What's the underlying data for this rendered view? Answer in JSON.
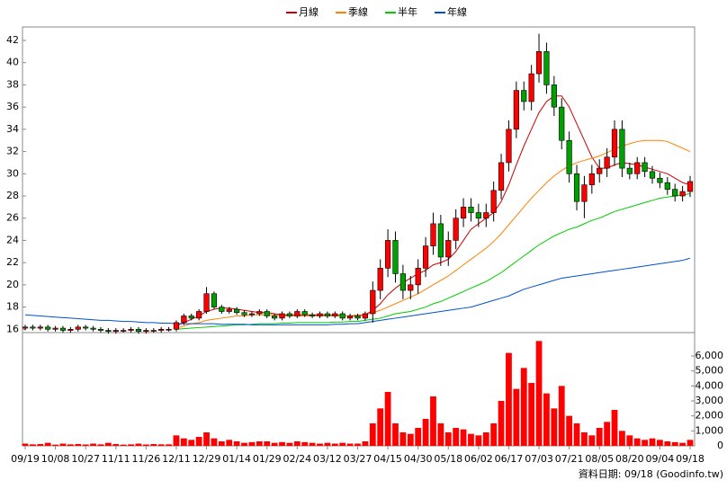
{
  "chart_data": [
    {
      "type": "candlestick",
      "legend": "top",
      "up_color": "#ff0000",
      "down_color": "#00a000",
      "ylim": [
        15.7,
        43.05
      ],
      "yticks": [
        16,
        18,
        20,
        22,
        24,
        26,
        28,
        30,
        32,
        34,
        36,
        38,
        40,
        42
      ],
      "open": [
        16.1,
        16.2,
        16.1,
        16.2,
        16.0,
        16.1,
        15.9,
        16.0,
        16.2,
        16.1,
        16.0,
        15.9,
        15.8,
        15.9,
        15.9,
        16.0,
        15.8,
        15.9,
        15.9,
        16.0,
        16.0,
        16.6,
        17.2,
        17.0,
        17.6,
        19.2,
        18.0,
        17.6,
        17.8,
        17.5,
        17.3,
        17.4,
        17.6,
        17.2,
        17.0,
        17.4,
        17.2,
        17.6,
        17.3,
        17.2,
        17.4,
        17.2,
        17.4,
        17.0,
        17.2,
        17.0,
        17.4,
        19.5,
        21.5,
        24.0,
        21.0,
        19.5,
        20.0,
        21.5,
        23.5,
        25.5,
        22.5,
        24.0,
        26.0,
        27.0,
        26.5,
        26.0,
        26.5,
        28.5,
        31.0,
        34.0,
        37.5,
        36.5,
        39.0,
        41.0,
        38.0,
        36.0,
        33.0,
        30.0,
        27.5,
        29.0,
        30.0,
        30.5,
        31.5,
        34.0,
        30.5,
        30.0,
        31.0,
        30.2,
        29.6,
        29.2,
        28.6,
        28.0,
        28.4
      ],
      "high": [
        16.4,
        16.4,
        16.4,
        16.4,
        16.3,
        16.3,
        16.2,
        16.4,
        16.4,
        16.3,
        16.2,
        16.1,
        16.1,
        16.1,
        16.2,
        16.2,
        16.1,
        16.1,
        16.2,
        16.2,
        16.8,
        17.4,
        17.4,
        17.8,
        19.8,
        19.4,
        18.2,
        18.0,
        18.0,
        17.7,
        17.6,
        17.8,
        17.8,
        17.4,
        17.6,
        17.6,
        17.8,
        17.8,
        17.5,
        17.6,
        17.6,
        17.6,
        17.6,
        17.4,
        17.4,
        17.6,
        20.3,
        22.3,
        25.0,
        24.8,
        21.8,
        20.8,
        22.3,
        24.3,
        26.5,
        26.3,
        24.8,
        26.8,
        27.8,
        27.8,
        27.3,
        27.3,
        29.3,
        31.8,
        34.8,
        38.3,
        38.3,
        39.8,
        42.6,
        41.8,
        38.8,
        36.8,
        33.8,
        30.8,
        29.8,
        30.8,
        31.3,
        32.3,
        34.8,
        34.8,
        31.0,
        31.5,
        31.5,
        30.7,
        30.1,
        29.7,
        29.1,
        28.9,
        29.8
      ],
      "low": [
        15.9,
        15.9,
        15.9,
        15.8,
        15.8,
        15.7,
        15.7,
        15.8,
        15.9,
        15.8,
        15.7,
        15.6,
        15.6,
        15.7,
        15.7,
        15.6,
        15.6,
        15.7,
        15.7,
        15.8,
        15.8,
        16.4,
        16.8,
        16.8,
        17.4,
        17.8,
        17.4,
        17.4,
        17.3,
        17.1,
        17.1,
        17.2,
        17.0,
        16.8,
        16.8,
        17.0,
        17.0,
        17.1,
        17.0,
        17.0,
        17.0,
        17.0,
        16.8,
        16.8,
        16.8,
        16.8,
        16.6,
        18.7,
        20.7,
        20.2,
        18.7,
        18.7,
        19.2,
        20.7,
        22.7,
        21.7,
        21.7,
        23.2,
        25.2,
        25.7,
        25.2,
        25.2,
        25.7,
        27.7,
        30.2,
        33.2,
        35.7,
        35.7,
        38.2,
        37.2,
        35.2,
        32.2,
        29.2,
        26.7,
        26.0,
        28.2,
        29.2,
        29.7,
        30.7,
        29.7,
        29.5,
        29.5,
        29.7,
        29.1,
        28.7,
        28.1,
        27.5,
        27.5,
        27.9
      ],
      "close": [
        16.2,
        16.1,
        16.2,
        16.0,
        16.1,
        15.9,
        16.0,
        16.2,
        16.1,
        16.0,
        15.9,
        15.8,
        15.9,
        15.9,
        16.0,
        15.8,
        15.9,
        15.9,
        16.0,
        16.0,
        16.6,
        17.2,
        17.0,
        17.6,
        19.2,
        18.0,
        17.6,
        17.8,
        17.5,
        17.3,
        17.4,
        17.6,
        17.2,
        17.0,
        17.4,
        17.2,
        17.6,
        17.3,
        17.2,
        17.4,
        17.2,
        17.4,
        17.0,
        17.2,
        17.0,
        17.4,
        19.5,
        21.5,
        24.0,
        21.0,
        19.5,
        20.0,
        21.5,
        23.5,
        25.5,
        22.5,
        24.0,
        26.0,
        27.0,
        26.5,
        26.0,
        26.5,
        28.5,
        31.0,
        34.0,
        37.5,
        36.5,
        39.0,
        41.0,
        38.0,
        36.0,
        33.0,
        30.0,
        27.5,
        29.0,
        30.0,
        30.5,
        31.5,
        34.0,
        30.5,
        30.0,
        31.0,
        30.2,
        29.6,
        29.2,
        28.6,
        28.0,
        28.4,
        29.3
      ],
      "series": [
        {
          "name": "月線",
          "color": "#cc0000",
          "values": [
            null,
            null,
            null,
            null,
            null,
            null,
            null,
            null,
            null,
            null,
            null,
            null,
            null,
            null,
            null,
            null,
            null,
            null,
            null,
            null,
            16.3,
            16.6,
            16.9,
            17.2,
            17.6,
            17.8,
            17.9,
            17.9,
            17.8,
            17.7,
            17.6,
            17.5,
            17.5,
            17.4,
            17.3,
            17.3,
            17.3,
            17.3,
            17.3,
            17.3,
            17.3,
            17.3,
            17.2,
            17.2,
            17.2,
            17.3,
            17.7,
            18.3,
            19.1,
            19.7,
            20.2,
            20.6,
            21.0,
            21.3,
            21.8,
            22.0,
            22.3,
            23.0,
            24.0,
            25.0,
            25.5,
            26.0,
            26.5,
            27.5,
            29.0,
            30.8,
            32.5,
            34.0,
            35.5,
            36.5,
            37.0,
            37.0,
            36.0,
            34.5,
            33.0,
            31.5,
            30.5,
            30.5,
            30.8,
            31.0,
            30.9,
            30.8,
            30.6,
            30.4,
            30.2,
            30.0,
            29.6,
            29.2,
            29.0
          ]
        },
        {
          "name": "季線",
          "color": "#ff8000",
          "values": [
            null,
            null,
            null,
            null,
            null,
            null,
            null,
            null,
            null,
            null,
            null,
            null,
            null,
            null,
            null,
            null,
            null,
            null,
            null,
            null,
            16.1,
            16.3,
            16.5,
            16.6,
            16.8,
            16.9,
            17.0,
            17.1,
            17.2,
            17.2,
            17.3,
            17.3,
            17.3,
            17.3,
            17.2,
            17.2,
            17.2,
            17.2,
            17.2,
            17.2,
            17.2,
            17.2,
            17.2,
            17.2,
            17.3,
            17.3,
            17.5,
            17.7,
            18.0,
            18.3,
            18.6,
            18.9,
            19.2,
            19.6,
            20.0,
            20.4,
            20.8,
            21.3,
            21.8,
            22.3,
            22.8,
            23.3,
            23.9,
            24.6,
            25.4,
            26.2,
            27.0,
            27.8,
            28.5,
            29.2,
            29.8,
            30.3,
            30.7,
            31.0,
            31.2,
            31.4,
            31.6,
            31.9,
            32.2,
            32.5,
            32.7,
            32.9,
            33.0,
            33.0,
            33.0,
            32.9,
            32.6,
            32.3,
            32.0
          ]
        },
        {
          "name": "半年",
          "color": "#00cc00",
          "values": [
            null,
            null,
            null,
            null,
            null,
            null,
            null,
            null,
            null,
            null,
            null,
            null,
            null,
            null,
            null,
            null,
            null,
            null,
            null,
            null,
            16.0,
            16.05,
            16.1,
            16.15,
            16.2,
            16.25,
            16.3,
            16.35,
            16.4,
            16.4,
            16.45,
            16.5,
            16.5,
            16.5,
            16.55,
            16.55,
            16.6,
            16.6,
            16.6,
            16.6,
            16.6,
            16.65,
            16.65,
            16.7,
            16.7,
            16.8,
            16.9,
            17.0,
            17.2,
            17.4,
            17.5,
            17.6,
            17.8,
            18.0,
            18.3,
            18.5,
            18.8,
            19.1,
            19.4,
            19.7,
            20.0,
            20.3,
            20.7,
            21.1,
            21.6,
            22.1,
            22.6,
            23.1,
            23.6,
            24.0,
            24.4,
            24.7,
            25.0,
            25.2,
            25.5,
            25.8,
            26.0,
            26.3,
            26.6,
            26.8,
            27.0,
            27.2,
            27.4,
            27.6,
            27.8,
            27.9,
            28.0,
            28.1,
            28.2
          ]
        },
        {
          "name": "年線",
          "color": "#0050d0",
          "values": [
            17.3,
            17.25,
            17.2,
            17.15,
            17.1,
            17.05,
            17.0,
            16.95,
            16.9,
            16.85,
            16.8,
            16.8,
            16.75,
            16.7,
            16.7,
            16.65,
            16.6,
            16.6,
            16.55,
            16.55,
            16.5,
            16.5,
            16.5,
            16.5,
            16.5,
            16.5,
            16.45,
            16.45,
            16.45,
            16.45,
            16.4,
            16.4,
            16.4,
            16.4,
            16.4,
            16.4,
            16.4,
            16.4,
            16.4,
            16.4,
            16.4,
            16.45,
            16.45,
            16.5,
            16.5,
            16.6,
            16.7,
            16.8,
            16.9,
            17.0,
            17.1,
            17.2,
            17.3,
            17.4,
            17.5,
            17.6,
            17.7,
            17.8,
            17.9,
            18.0,
            18.2,
            18.4,
            18.6,
            18.8,
            19.0,
            19.3,
            19.6,
            19.8,
            20.0,
            20.2,
            20.4,
            20.6,
            20.7,
            20.8,
            20.9,
            21.0,
            21.1,
            21.2,
            21.3,
            21.4,
            21.5,
            21.6,
            21.7,
            21.8,
            21.9,
            22.0,
            22.1,
            22.2,
            22.4
          ]
        }
      ]
    },
    {
      "type": "bar",
      "color": "#ff0000",
      "ylim": [
        0,
        7440
      ],
      "yticks": [
        0,
        {
          "value": 1000,
          "label": "1,000"
        },
        {
          "value": 2000,
          "label": "2,000"
        },
        {
          "value": 3000,
          "label": "3,000"
        },
        {
          "value": 4000,
          "label": "4,000"
        },
        {
          "value": 5000,
          "label": "5,000"
        },
        {
          "value": 6000,
          "label": "6,000"
        }
      ],
      "categories": [
        "09/19",
        null,
        null,
        null,
        "10/08",
        null,
        null,
        null,
        "10/27",
        null,
        null,
        null,
        "11/11",
        null,
        null,
        null,
        "11/26",
        null,
        null,
        null,
        "12/11",
        null,
        null,
        null,
        "12/29",
        null,
        null,
        null,
        "01/14",
        null,
        null,
        null,
        "01/29",
        null,
        null,
        null,
        "02/24",
        null,
        null,
        null,
        "03/12",
        null,
        null,
        null,
        "03/27",
        null,
        null,
        null,
        "04/15",
        null,
        null,
        null,
        "04/30",
        null,
        null,
        null,
        "05/18",
        null,
        null,
        null,
        "06/02",
        null,
        null,
        null,
        "06/17",
        null,
        null,
        null,
        "07/03",
        null,
        null,
        null,
        "07/21",
        null,
        null,
        null,
        "08/05",
        null,
        null,
        null,
        "08/20",
        null,
        null,
        null,
        "09/04",
        null,
        null,
        null,
        "09/18"
      ],
      "values": [
        150,
        100,
        120,
        200,
        80,
        150,
        100,
        120,
        90,
        150,
        100,
        200,
        120,
        80,
        100,
        150,
        90,
        120,
        100,
        100,
        700,
        500,
        400,
        600,
        900,
        500,
        300,
        400,
        300,
        200,
        250,
        300,
        300,
        200,
        250,
        200,
        300,
        250,
        200,
        150,
        200,
        150,
        200,
        150,
        150,
        300,
        1500,
        2500,
        3600,
        1500,
        900,
        800,
        1200,
        1800,
        3300,
        1500,
        900,
        1200,
        1100,
        800,
        700,
        900,
        1500,
        3000,
        6200,
        3800,
        5200,
        4200,
        7000,
        3500,
        2500,
        4000,
        2000,
        1500,
        900,
        700,
        1200,
        1600,
        2400,
        1000,
        700,
        500,
        400,
        500,
        400,
        300,
        250,
        200,
        400
      ],
      "note": "資料日期: 09/18 (Goodinfo.tw)"
    }
  ]
}
